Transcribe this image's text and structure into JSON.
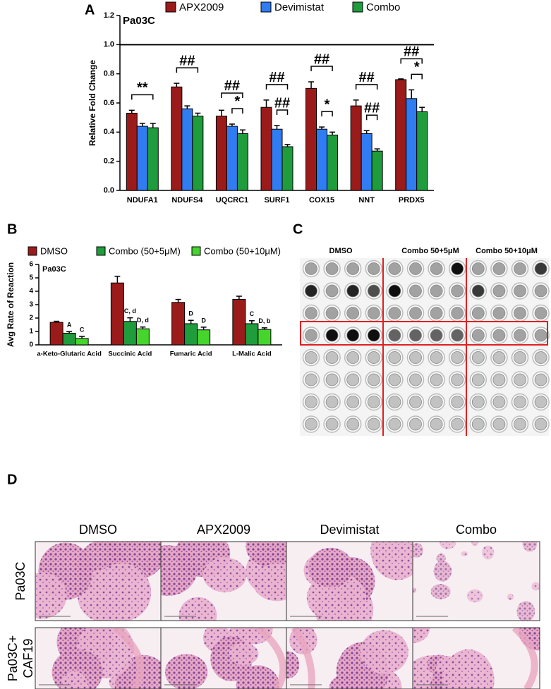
{
  "chart_data": [
    {
      "type": "bar",
      "label": "A",
      "subtitle": "Pa03C",
      "y_label": "Relative Fold Change",
      "categories": [
        "NDUFA1",
        "NDUFS4",
        "UQCRC1",
        "SURF1",
        "COX15",
        "NNT",
        "PRDX5"
      ],
      "series": [
        {
          "name": "APX2009",
          "color": "#9b1b1b",
          "values": [
            0.53,
            0.71,
            0.51,
            0.57,
            0.7,
            0.58,
            0.76
          ],
          "errors": [
            0.02,
            0.025,
            0.04,
            0.05,
            0.045,
            0.04,
            0.005
          ]
        },
        {
          "name": "Devimistat",
          "color": "#2f7cf3",
          "values": [
            0.44,
            0.56,
            0.44,
            0.42,
            0.42,
            0.39,
            0.63
          ],
          "errors": [
            0.02,
            0.02,
            0.015,
            0.025,
            0.015,
            0.02,
            0.06
          ]
        },
        {
          "name": "Combo",
          "color": "#1f9c3c",
          "values": [
            0.43,
            0.51,
            0.39,
            0.3,
            0.38,
            0.27,
            0.54
          ],
          "errors": [
            0.03,
            0.02,
            0.025,
            0.015,
            0.02,
            0.015,
            0.03
          ]
        }
      ],
      "ylim": [
        0,
        1.2
      ],
      "yticks": [
        {
          "value": 0,
          "label": "0.0"
        },
        0.2,
        0.4,
        0.6,
        0.8,
        {
          "value": 1,
          "label": "1.0"
        },
        1.2
      ],
      "hline": 1,
      "annotations": [
        {
          "category": 0,
          "from": 0,
          "to": 2,
          "text": "**"
        },
        {
          "category": 1,
          "from": 0,
          "to": 2,
          "text": "##"
        },
        {
          "category": 2,
          "from": 0,
          "to": 2,
          "text": "##"
        },
        {
          "category": 2,
          "from": 1,
          "to": 2,
          "text": "*"
        },
        {
          "category": 3,
          "from": 0,
          "to": 2,
          "text": "##"
        },
        {
          "category": 3,
          "from": 1,
          "to": 2,
          "text": "##"
        },
        {
          "category": 4,
          "from": 0,
          "to": 2,
          "text": "##"
        },
        {
          "category": 4,
          "from": 1,
          "to": 2,
          "text": "*"
        },
        {
          "category": 5,
          "from": 0,
          "to": 2,
          "text": "##"
        },
        {
          "category": 5,
          "from": 1,
          "to": 2,
          "text": "##"
        },
        {
          "category": 6,
          "from": 0,
          "to": 2,
          "text": "##"
        },
        {
          "category": 6,
          "from": 1,
          "to": 2,
          "text": "*"
        }
      ]
    },
    {
      "type": "bar",
      "label": "B",
      "subtitle": "Pa03C",
      "y_label": "Avg Rate of Reaction",
      "categories": [
        "a-Keto-Glutaric Acid",
        "Succinic Acid",
        "Fumaric Acid",
        "L-Malic Acid"
      ],
      "series": [
        {
          "name": "DMSO",
          "color": "#9b1b1b",
          "values": [
            1.68,
            4.62,
            3.17,
            3.4
          ],
          "errors": [
            0.08,
            0.5,
            0.22,
            0.23
          ]
        },
        {
          "name": "Combo (50+5μM)",
          "color": "#1f9c3c",
          "values": [
            0.87,
            1.75,
            1.58,
            1.58
          ],
          "errors": [
            0.12,
            0.27,
            0.25,
            0.22
          ],
          "letters": [
            "A",
            "C, d",
            "D",
            "C"
          ]
        },
        {
          "name": "Combo (50+10μM)",
          "color": "#45d52d",
          "values": [
            0.48,
            1.2,
            1.12,
            1.15
          ],
          "errors": [
            0.15,
            0.13,
            0.2,
            0.12
          ],
          "letters": [
            "C",
            "D, d",
            "D",
            "D, b"
          ]
        }
      ],
      "ylim": [
        0,
        6
      ],
      "yticks": [
        0,
        1,
        2,
        3,
        4,
        5,
        6
      ]
    }
  ],
  "panel_c": {
    "label": "C",
    "columns": [
      "DMSO",
      "Combo 50+5μM",
      "Combo 50+10μM"
    ]
  },
  "panel_d": {
    "label": "D",
    "columns": [
      "DMSO",
      "APX2009",
      "Devimistat",
      "Combo"
    ],
    "rows": [
      {
        "lines": [
          "Pa03C"
        ]
      },
      {
        "lines": [
          "Pa03C+",
          "CAF19"
        ]
      }
    ]
  }
}
